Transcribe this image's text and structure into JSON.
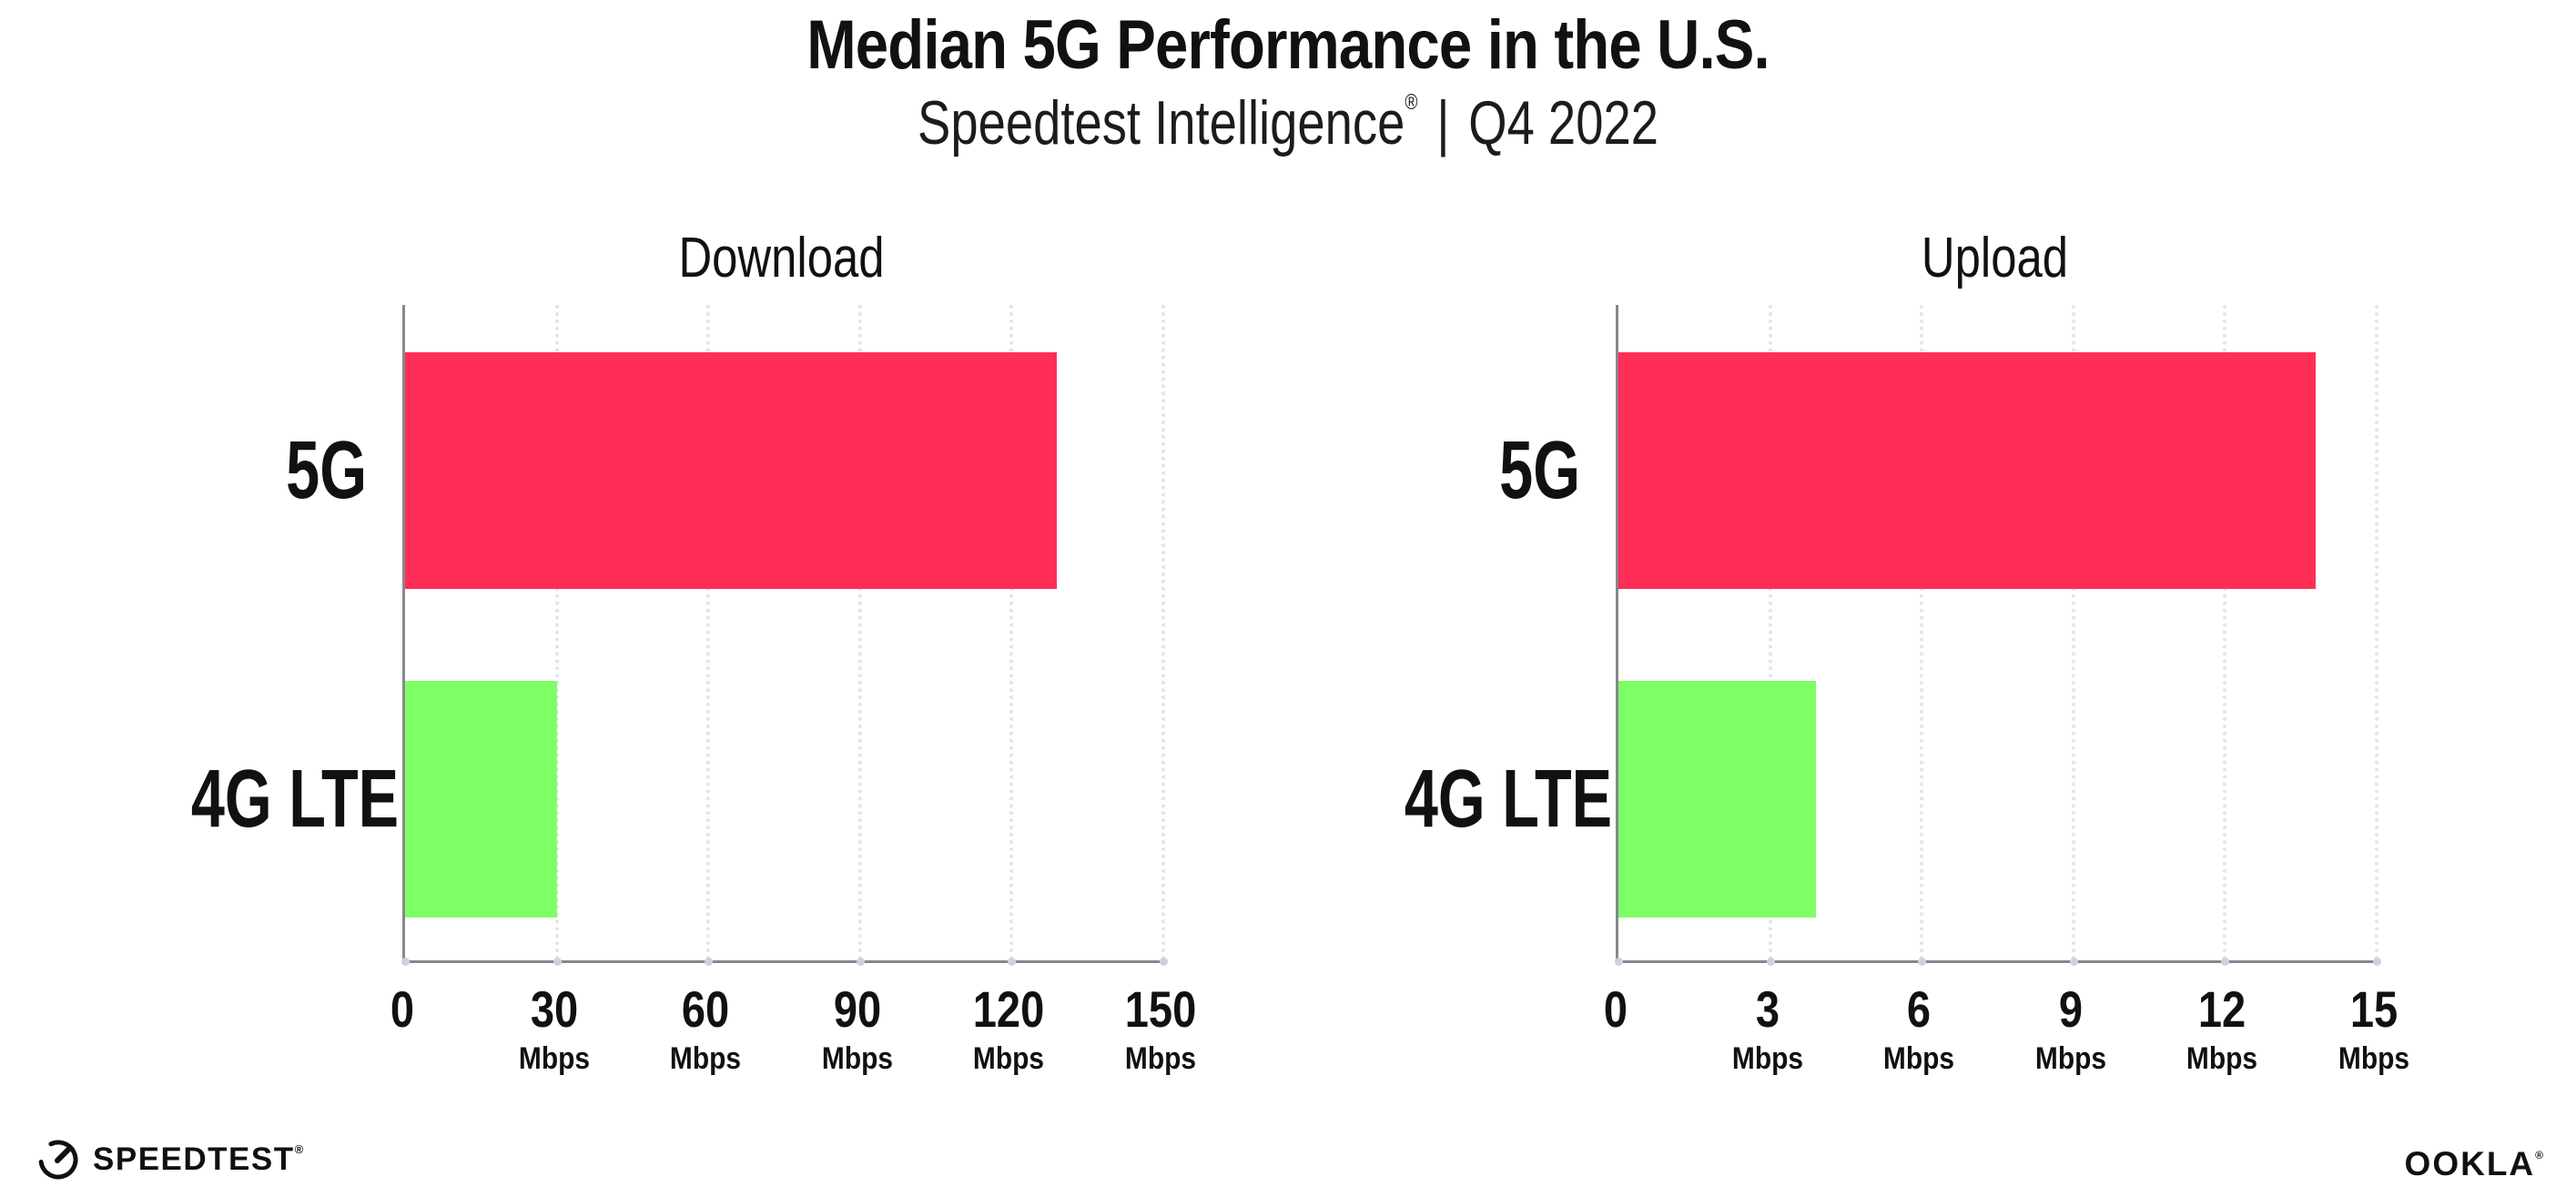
{
  "header": {
    "title": "Median 5G Performance in the U.S.",
    "subtitle_brand": "Speedtest Intelligence",
    "subtitle_reg": "®",
    "subtitle_sep": "|",
    "subtitle_period": "Q4 2022"
  },
  "footer": {
    "speedtest_label": "SPEEDTEST",
    "speedtest_reg": "®",
    "ookla_label": "OOKLA",
    "ookla_reg": "®"
  },
  "colors": {
    "bar_5g": "#ff2e56",
    "bar_4g": "#7eff66",
    "axis": "#87878f",
    "gridline": "#e3e3ee",
    "axis_tick_dot": "#ccd2e0",
    "text": "#111111",
    "background": "#ffffff"
  },
  "chart_data": [
    {
      "type": "bar",
      "orientation": "horizontal",
      "title": "Download",
      "categories": [
        "5G",
        "4G LTE"
      ],
      "values": [
        129,
        30
      ],
      "unit": "Mbps",
      "xlim": [
        0,
        150
      ],
      "xticks": [
        0,
        30,
        60,
        90,
        120,
        150
      ],
      "tick_unit_label": "Mbps",
      "grid": "vertical-dotted",
      "legend": "none",
      "bar_colors": [
        "#ff2e56",
        "#7eff66"
      ]
    },
    {
      "type": "bar",
      "orientation": "horizontal",
      "title": "Upload",
      "categories": [
        "5G",
        "4G LTE"
      ],
      "values": [
        13.8,
        3.9
      ],
      "unit": "Mbps",
      "xlim": [
        0,
        15
      ],
      "xticks": [
        0,
        3,
        6,
        9,
        12,
        15
      ],
      "tick_unit_label": "Mbps",
      "grid": "vertical-dotted",
      "legend": "none",
      "bar_colors": [
        "#ff2e56",
        "#7eff66"
      ]
    }
  ]
}
